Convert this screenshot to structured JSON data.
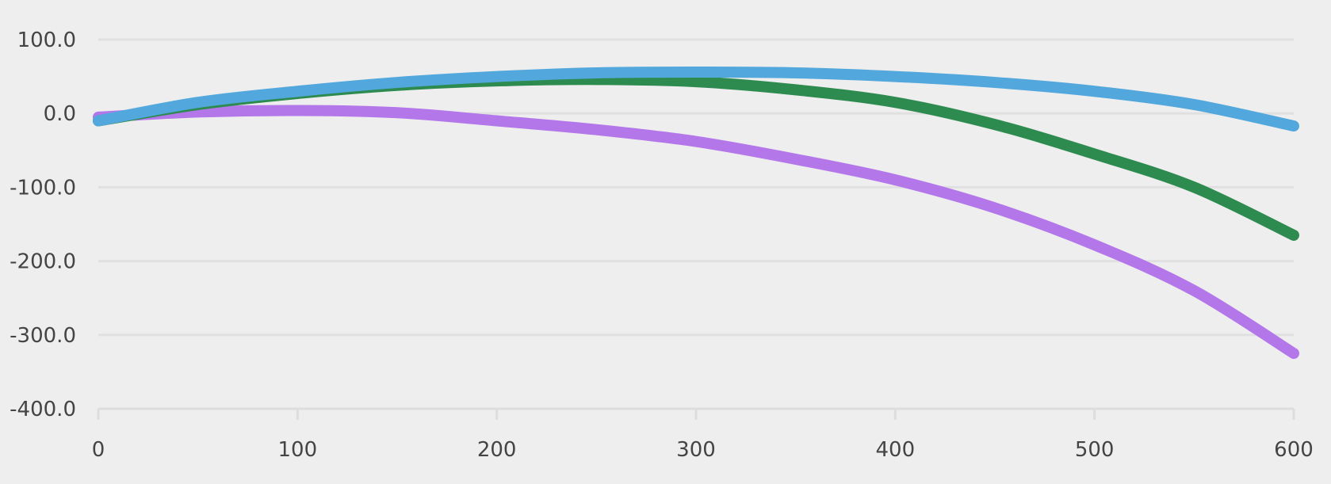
{
  "chart_data": {
    "type": "line",
    "title": "",
    "xlabel": "",
    "ylabel": "",
    "xlim": [
      0,
      600
    ],
    "ylim": [
      -400,
      100
    ],
    "x_ticks": [
      0,
      100,
      200,
      300,
      400,
      500,
      600
    ],
    "x_tick_labels": [
      "0",
      "100",
      "200",
      "300",
      "400",
      "500",
      "600"
    ],
    "y_ticks": [
      100,
      0,
      -100,
      -200,
      -300,
      -400
    ],
    "y_tick_labels": [
      "100.0",
      "0.0",
      "-100.0",
      "-200.0",
      "-300.0",
      "-400.0"
    ],
    "grid": true,
    "legend": "none",
    "x": [
      0,
      50,
      100,
      150,
      200,
      250,
      300,
      350,
      400,
      450,
      500,
      550,
      600
    ],
    "series": [
      {
        "name": "series-purple",
        "color": "#b377ea",
        "values": [
          -5,
          2,
          4,
          1,
          -10,
          -22,
          -38,
          -62,
          -90,
          -128,
          -178,
          -240,
          -325
        ]
      },
      {
        "name": "series-green",
        "color": "#2e8b50",
        "values": [
          -10,
          12,
          27,
          38,
          44,
          46,
          43,
          32,
          15,
          -15,
          -55,
          -100,
          -165
        ]
      },
      {
        "name": "series-blue",
        "color": "#52a7dd",
        "values": [
          -10,
          15,
          30,
          42,
          50,
          55,
          56,
          55,
          50,
          42,
          30,
          12,
          -17
        ]
      }
    ]
  }
}
